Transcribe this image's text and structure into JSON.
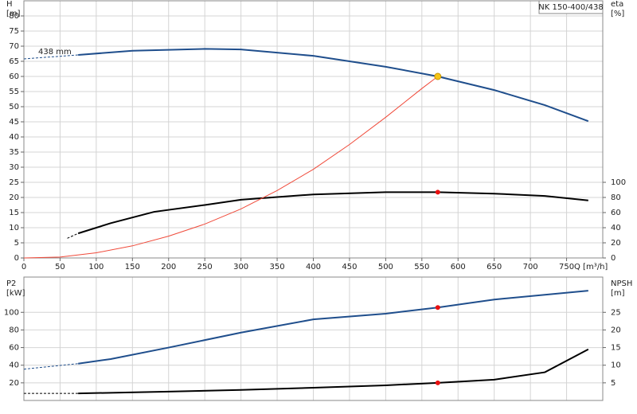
{
  "chart_data": [
    {
      "type": "line",
      "title": "NK 150-400/438",
      "annotation": "438 mm",
      "xlabel": "Q [m³/h]",
      "ylabel": "H",
      "yunit": "[m]",
      "y2label": "eta",
      "y2unit": "[%]",
      "xlim": [
        0,
        800
      ],
      "xticks": [
        0,
        50,
        100,
        150,
        200,
        250,
        300,
        350,
        400,
        450,
        500,
        550,
        600,
        650,
        700,
        750
      ],
      "xtick_labels": true,
      "ylim": [
        0,
        85
      ],
      "yticks": [
        0,
        5,
        10,
        15,
        20,
        25,
        30,
        35,
        40,
        45,
        50,
        55,
        60,
        65,
        70,
        75,
        80
      ],
      "y2lim": [
        0,
        340
      ],
      "y2ticks": [
        0,
        20,
        40,
        60,
        80,
        100
      ],
      "grid": true,
      "series": [
        {
          "color": "#1f4e8c",
          "style": "dashed",
          "x": [
            0,
            75
          ],
          "values": [
            65.8,
            67.1
          ]
        },
        {
          "color": "#1f4e8c",
          "style": "solid",
          "x": [
            75,
            150,
            250,
            300,
            400,
            500,
            572,
            650,
            720,
            780
          ],
          "values": [
            67.1,
            68.5,
            69.1,
            68.9,
            66.8,
            63.2,
            60,
            55.5,
            50.5,
            45.2
          ]
        },
        {
          "color": "#000000",
          "style": "dashed",
          "axis": "y2",
          "x": [
            60,
            75
          ],
          "values": [
            26,
            32.5
          ]
        },
        {
          "color": "#000000",
          "style": "solid",
          "axis": "y2",
          "x": [
            75,
            120,
            180,
            250,
            300,
            400,
            500,
            572,
            650,
            720,
            780
          ],
          "values": [
            32.5,
            46,
            61,
            70,
            77,
            84,
            87,
            87,
            85,
            82,
            76
          ]
        },
        {
          "color": "#f04a3a",
          "style": "thin",
          "x": [
            0,
            50,
            100,
            150,
            200,
            250,
            300,
            350,
            400,
            450,
            500,
            550,
            572
          ],
          "values": [
            0,
            0.3,
            1.7,
            4,
            7.2,
            11.2,
            16.2,
            22.3,
            29.3,
            37.5,
            46.5,
            56,
            60
          ]
        }
      ],
      "points": [
        {
          "x": 572,
          "y": 60,
          "color": "#f5c518"
        },
        {
          "x": 572,
          "y": 87,
          "color": "#e81010",
          "axis": "y2"
        }
      ]
    },
    {
      "type": "line",
      "ylabel": "P2",
      "yunit": "[kW]",
      "y2label": "NPSH",
      "y2unit": "[m]",
      "xlim": [
        0,
        800
      ],
      "xticks": [
        0,
        50,
        100,
        150,
        200,
        250,
        300,
        350,
        400,
        450,
        500,
        550,
        600,
        650,
        700,
        750
      ],
      "xtick_labels": false,
      "ylim": [
        0,
        140
      ],
      "yticks": [
        20,
        40,
        60,
        80,
        100
      ],
      "y2lim": [
        0,
        35
      ],
      "y2ticks": [
        5,
        10,
        15,
        20,
        25
      ],
      "grid": true,
      "series": [
        {
          "color": "#1f4e8c",
          "style": "dashed",
          "x": [
            0,
            75
          ],
          "values": [
            35.5,
            41.8
          ]
        },
        {
          "color": "#1f4e8c",
          "style": "solid",
          "x": [
            75,
            120,
            200,
            300,
            400,
            500,
            572,
            650,
            780
          ],
          "values": [
            41.8,
            47,
            60,
            77,
            92,
            98.5,
            105.5,
            114.5,
            124.5
          ]
        },
        {
          "color": "#000000",
          "style": "dashed",
          "axis": "y2",
          "x": [
            0,
            75
          ],
          "values": [
            2,
            2
          ]
        },
        {
          "color": "#000000",
          "style": "solid",
          "axis": "y2",
          "x": [
            75,
            200,
            300,
            400,
            500,
            572,
            650,
            720,
            780
          ],
          "values": [
            2,
            2.5,
            3,
            3.6,
            4.3,
            5,
            5.9,
            8,
            14.5
          ]
        }
      ],
      "points": [
        {
          "x": 572,
          "y": 105.5,
          "color": "#e81010"
        },
        {
          "x": 572,
          "y": 5,
          "color": "#e81010",
          "axis": "y2"
        }
      ]
    }
  ]
}
